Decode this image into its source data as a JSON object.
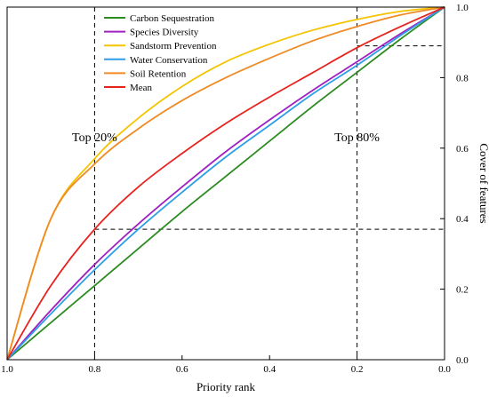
{
  "chart_data": {
    "type": "line",
    "title": "",
    "xlabel": "Priority rank",
    "ylabel": "Cover of features",
    "xlim": [
      1.0,
      0.0
    ],
    "ylim": [
      0.0,
      1.0
    ],
    "x_reversed": true,
    "x_ticks": [
      "1.0",
      "0.8",
      "0.6",
      "0.4",
      "0.2",
      "0.0"
    ],
    "y_ticks": [
      "0.0",
      "0.2",
      "0.4",
      "0.6",
      "0.8",
      "1.0"
    ],
    "x_tick_values": [
      1.0,
      0.8,
      0.6,
      0.4,
      0.2,
      0.0
    ],
    "y_tick_values": [
      0.0,
      0.2,
      0.4,
      0.6,
      0.8,
      1.0
    ],
    "legend_position": "top-left",
    "grid": false,
    "x": [
      1.0,
      0.9,
      0.8,
      0.7,
      0.6,
      0.5,
      0.4,
      0.3,
      0.2,
      0.1,
      0.0
    ],
    "series": [
      {
        "name": "Carbon Sequestration",
        "color": "#2e8b22",
        "values": [
          0.0,
          0.105,
          0.21,
          0.315,
          0.42,
          0.52,
          0.62,
          0.72,
          0.815,
          0.91,
          1.0
        ]
      },
      {
        "name": "Species Diversity",
        "color": "#a020c0",
        "values": [
          0.0,
          0.14,
          0.27,
          0.385,
          0.49,
          0.59,
          0.68,
          0.765,
          0.845,
          0.925,
          1.0
        ]
      },
      {
        "name": "Sandstorm Prevention",
        "color": "#f5c400",
        "values": [
          0.0,
          0.4,
          0.57,
          0.685,
          0.775,
          0.845,
          0.895,
          0.935,
          0.965,
          0.988,
          1.0
        ]
      },
      {
        "name": "Water Conservation",
        "color": "#2e9ee6",
        "values": [
          0.0,
          0.13,
          0.255,
          0.37,
          0.475,
          0.575,
          0.665,
          0.755,
          0.835,
          0.92,
          1.0
        ]
      },
      {
        "name": "Soil Retention",
        "color": "#f08a24",
        "values": [
          0.0,
          0.4,
          0.555,
          0.655,
          0.735,
          0.8,
          0.855,
          0.905,
          0.945,
          0.978,
          1.0
        ]
      },
      {
        "name": "Mean",
        "color": "#e8231e",
        "values": [
          0.0,
          0.21,
          0.37,
          0.49,
          0.585,
          0.67,
          0.745,
          0.815,
          0.885,
          0.945,
          1.0
        ]
      }
    ],
    "reference_lines": [
      {
        "orientation": "vertical",
        "x": 0.8
      },
      {
        "orientation": "vertical",
        "x": 0.2
      },
      {
        "orientation": "horizontal",
        "y": 0.37,
        "x_from": 0.8,
        "x_to": 0.0
      },
      {
        "orientation": "horizontal",
        "y": 0.89,
        "x_from": 0.2,
        "x_to": 0.0
      }
    ],
    "annotations": [
      {
        "text": "Top 20%",
        "x": 0.8
      },
      {
        "text": "Top 80%",
        "x": 0.2
      }
    ]
  }
}
